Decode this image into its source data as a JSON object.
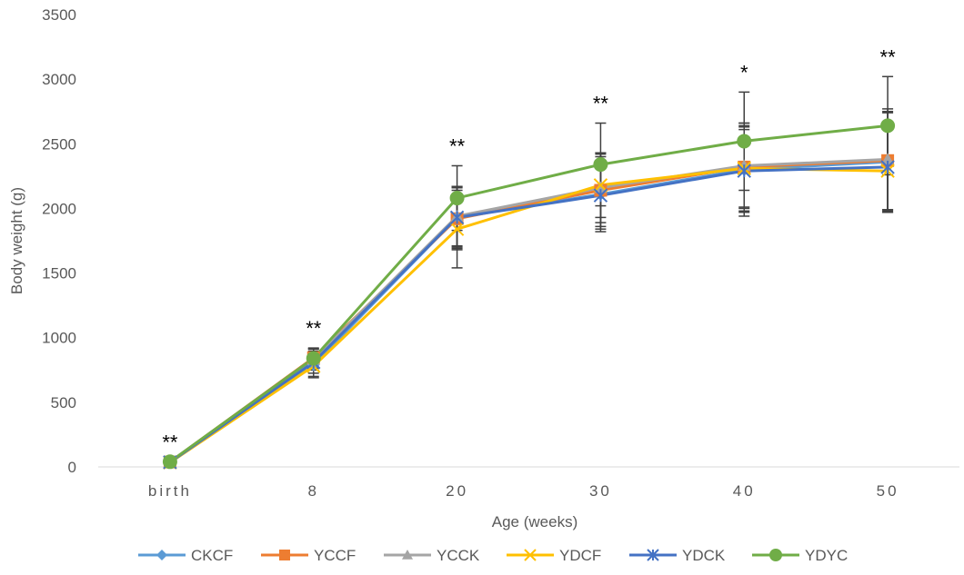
{
  "chart_data": {
    "type": "line",
    "title": "",
    "xlabel": "Age (weeks)",
    "ylabel": "Body weight (g)",
    "categories": [
      "birth",
      "8",
      "20",
      "30",
      "40",
      "50"
    ],
    "ylim": [
      0,
      3500
    ],
    "yticks": [
      "0",
      "500",
      "1000",
      "1500",
      "2000",
      "2500",
      "3000",
      "3500"
    ],
    "grid": false,
    "legend_position": "bottom",
    "series": [
      {
        "name": "CKCF",
        "color": "#5B9BD5",
        "marker": "diamond",
        "values": [
          35,
          790,
          1930,
          2110,
          2300,
          2360
        ],
        "error": [
          0,
          90,
          240,
          290,
          330,
          380
        ]
      },
      {
        "name": "YCCF",
        "color": "#ED7D31",
        "marker": "square",
        "values": [
          38,
          845,
          1920,
          2140,
          2320,
          2370
        ],
        "error": [
          0,
          75,
          240,
          280,
          340,
          380
        ]
      },
      {
        "name": "YCCK",
        "color": "#A5A5A5",
        "marker": "triangle",
        "values": [
          36,
          830,
          1940,
          2160,
          2330,
          2380
        ],
        "error": [
          0,
          80,
          230,
          270,
          330,
          390
        ]
      },
      {
        "name": "YDCF",
        "color": "#FFC000",
        "marker": "x",
        "values": [
          34,
          780,
          1840,
          2180,
          2310,
          2290
        ],
        "error": [
          0,
          90,
          300,
          250,
          300,
          320
        ]
      },
      {
        "name": "YDCK",
        "color": "#4472C4",
        "marker": "star",
        "values": [
          36,
          810,
          1930,
          2100,
          2290,
          2320
        ],
        "error": [
          0,
          85,
          230,
          260,
          350,
          350
        ]
      },
      {
        "name": "YDYC",
        "color": "#70AD47",
        "marker": "circle",
        "values": [
          40,
          840,
          2080,
          2340,
          2520,
          2640
        ],
        "error": [
          0,
          75,
          250,
          320,
          380,
          380
        ]
      }
    ],
    "significance": [
      "**",
      "**",
      "**",
      "**",
      "*",
      "**"
    ]
  }
}
